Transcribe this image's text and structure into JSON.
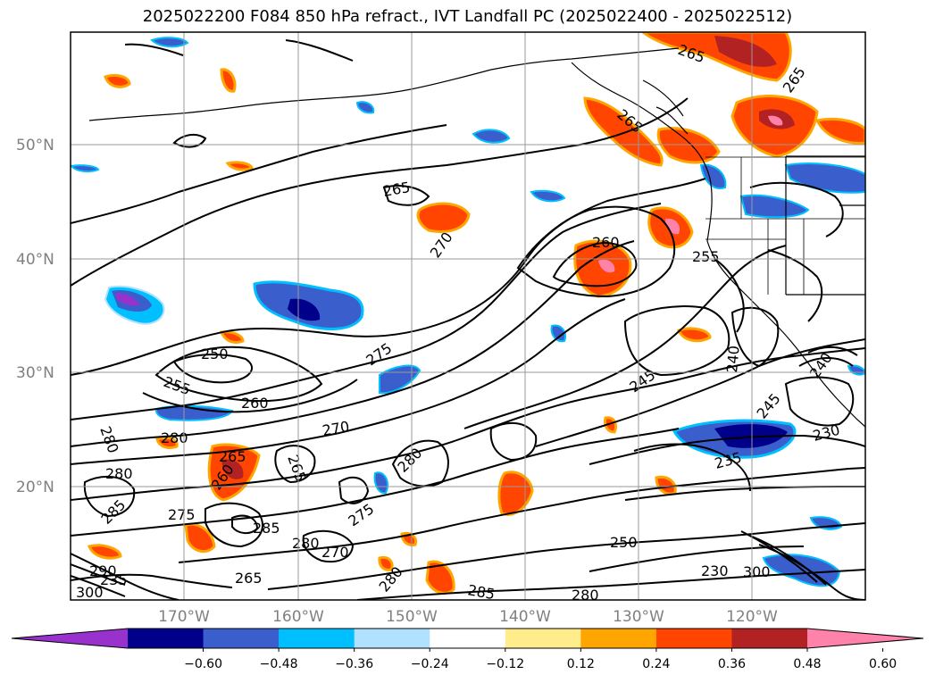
{
  "title": "2025022200 F084 850 hPa refract., IVT Landfall PC (2025022400 - 2025022512)",
  "lat_labels": [
    "50°N",
    "40°N",
    "30°N",
    "20°N"
  ],
  "lon_labels": [
    "170°W",
    "160°W",
    "150°W",
    "140°W",
    "130°W",
    "120°W"
  ],
  "contour_labels": [
    "265",
    "265",
    "265",
    "265",
    "270",
    "260",
    "255",
    "275",
    "250",
    "255",
    "260",
    "245",
    "240",
    "240",
    "245",
    "280",
    "280",
    "270",
    "280",
    "230",
    "265",
    "265",
    "260",
    "280",
    "275",
    "285",
    "275",
    "250",
    "285",
    "280",
    "270",
    "265",
    "280",
    "285",
    "280",
    "290",
    "300",
    "300",
    "230",
    "235",
    "235"
  ],
  "colorbar": {
    "colors": [
      "#9932cc",
      "#00008b",
      "#3a5fcd",
      "#00bfff",
      "#b0e2ff",
      "#ffffff",
      "#ffec8b",
      "#ffa500",
      "#ff4500",
      "#b22222",
      "#ff82ab"
    ],
    "tick_labels": [
      "−0.60",
      "−0.48",
      "−0.36",
      "−0.24",
      "−0.12",
      "0.12",
      "0.24",
      "0.36",
      "0.48",
      "0.60"
    ]
  },
  "fill_colors": {
    "neg_strong": "#00008b",
    "neg_mid": "#3a5fcd",
    "neg_light": "#00bfff",
    "neg_faint": "#b0e2ff",
    "pos_faint": "#ffec8b",
    "pos_light": "#ffa500",
    "pos_mid": "#ff4500",
    "pos_strong": "#b22222",
    "pos_max": "#ff82ab"
  }
}
